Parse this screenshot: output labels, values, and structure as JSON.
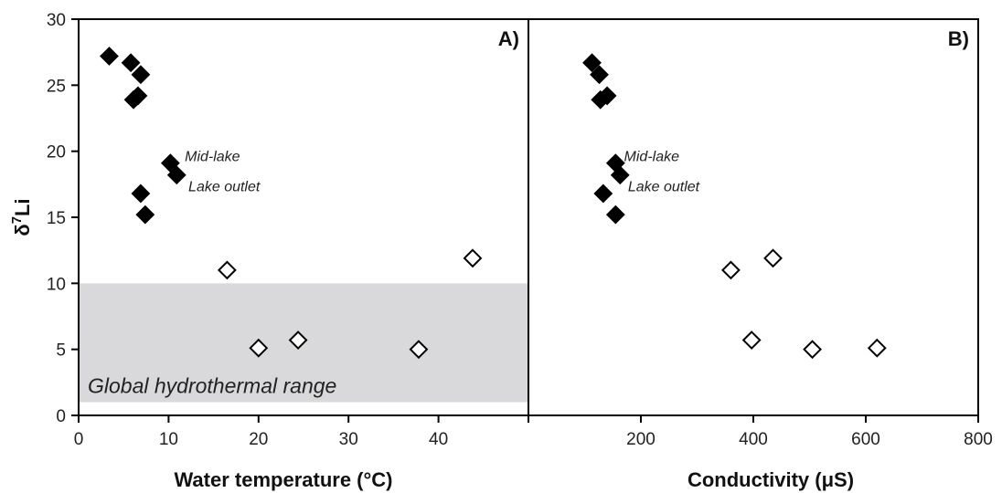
{
  "chart_data": [
    {
      "type": "scatter",
      "panel_label": "A)",
      "xlabel": "Water temperature (°C)",
      "ylabel": "δ",
      "ylabel_sup": "7",
      "ylabel_suffix": "Li",
      "xlim": [
        0,
        50
      ],
      "ylim": [
        0,
        30
      ],
      "xticks": [
        "0",
        "10",
        "20",
        "30",
        "40"
      ],
      "yticks": [
        "0",
        "5",
        "10",
        "15",
        "20",
        "25",
        "30"
      ],
      "shaded_band": {
        "y_from": 1,
        "y_to": 10,
        "label": "Global hydrothermal range",
        "color": "#d9d9db"
      },
      "series": [
        {
          "marker": "filled-diamond",
          "points": [
            {
              "x": 3.4,
              "y": 27.2
            },
            {
              "x": 5.8,
              "y": 26.7
            },
            {
              "x": 6.9,
              "y": 25.8
            },
            {
              "x": 6.6,
              "y": 24.2
            },
            {
              "x": 6.1,
              "y": 23.9
            },
            {
              "x": 10.2,
              "y": 19.1
            },
            {
              "x": 10.9,
              "y": 18.2
            },
            {
              "x": 6.9,
              "y": 16.8
            },
            {
              "x": 7.4,
              "y": 15.2
            }
          ]
        },
        {
          "marker": "open-diamond",
          "points": [
            {
              "x": 16.5,
              "y": 11.0
            },
            {
              "x": 20.0,
              "y": 5.1
            },
            {
              "x": 24.4,
              "y": 5.7
            },
            {
              "x": 37.8,
              "y": 5.0
            },
            {
              "x": 43.8,
              "y": 11.9
            }
          ]
        }
      ],
      "annotations": [
        {
          "text": "Mid-lake",
          "x": 11.8,
          "y": 19.6
        },
        {
          "text": "Lake outlet",
          "x": 12.2,
          "y": 17.3
        }
      ]
    },
    {
      "type": "scatter",
      "panel_label": "B)",
      "xlabel": "Conductivity (μS)",
      "xlim": [
        0,
        800
      ],
      "ylim": [
        0,
        30
      ],
      "xticks": [
        "200",
        "400",
        "600",
        "800"
      ],
      "series": [
        {
          "marker": "filled-diamond",
          "points": [
            {
              "x": 113,
              "y": 26.7
            },
            {
              "x": 126,
              "y": 25.8
            },
            {
              "x": 140,
              "y": 24.2
            },
            {
              "x": 128,
              "y": 23.9
            },
            {
              "x": 155,
              "y": 19.1
            },
            {
              "x": 163,
              "y": 18.2
            },
            {
              "x": 133,
              "y": 16.8
            },
            {
              "x": 155,
              "y": 15.2
            }
          ]
        },
        {
          "marker": "open-diamond",
          "points": [
            {
              "x": 360,
              "y": 11.0
            },
            {
              "x": 397,
              "y": 5.7
            },
            {
              "x": 435,
              "y": 11.9
            },
            {
              "x": 505,
              "y": 5.0
            },
            {
              "x": 620,
              "y": 5.1
            }
          ]
        }
      ],
      "annotations": [
        {
          "text": "Mid-lake",
          "x": 170,
          "y": 19.6
        },
        {
          "text": "Lake outlet",
          "x": 177,
          "y": 17.3
        }
      ]
    }
  ]
}
